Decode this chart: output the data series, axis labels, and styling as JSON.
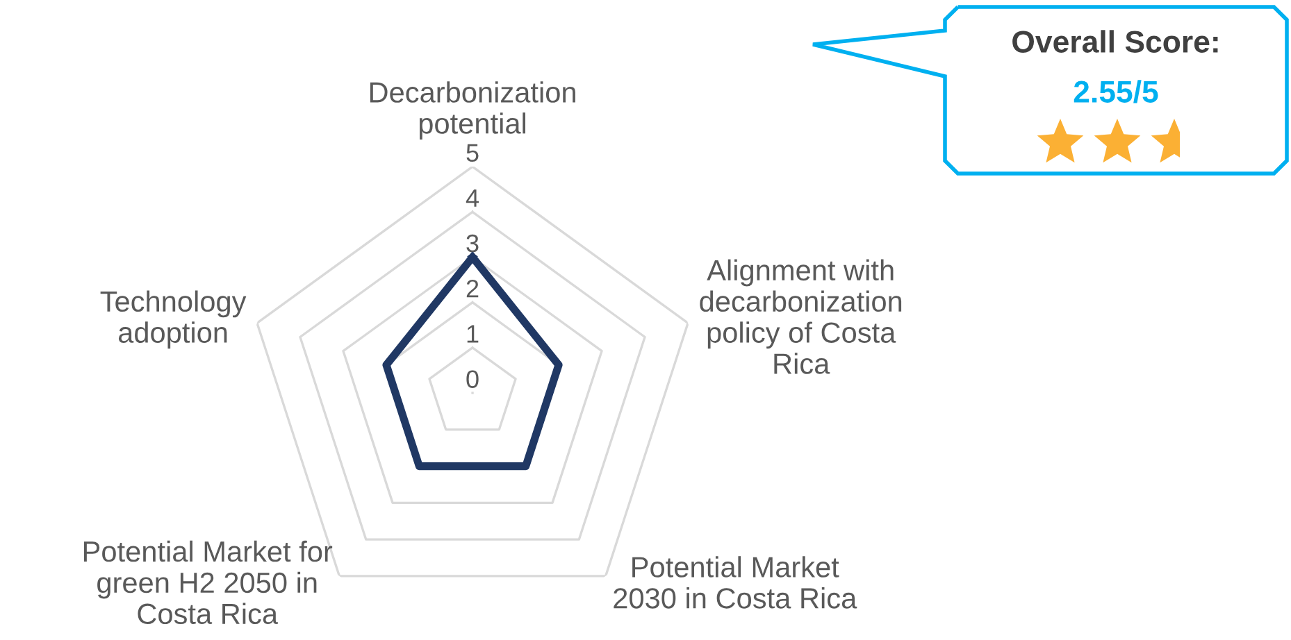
{
  "chart_data": {
    "type": "radar",
    "categories": [
      "Decarbonization\npotential",
      "Alignment with\ndecarbonization\npolicy of Costa\nRica",
      "Potential Market\n2030 in Costa Rica",
      "Potential Market for\ngreen H2 2050 in\nCosta Rica",
      "Technology\nadoption"
    ],
    "series": [
      {
        "color": "#203864",
        "values": [
          3,
          2,
          2,
          2,
          2
        ]
      }
    ],
    "ylim": [
      0,
      5
    ],
    "yticks": [
      0,
      1,
      2,
      3,
      4,
      5
    ],
    "grid": true,
    "annotations": [
      "Overall Score:",
      "2.55/5"
    ]
  }
}
